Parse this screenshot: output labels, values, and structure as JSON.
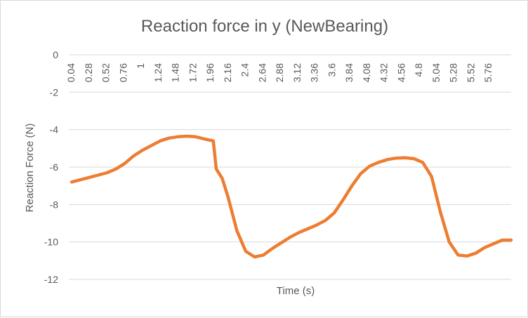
{
  "chart_data": {
    "type": "line",
    "title": "Reaction force in y (NewBearing)",
    "xlabel": "Time (s)",
    "ylabel": "Reaction Force (N)",
    "ylim": [
      -12,
      0
    ],
    "yticks": [
      0,
      -2,
      -4,
      -6,
      -8,
      -10,
      -12
    ],
    "grid": true,
    "legend": "none",
    "series_color": "#ED7D31",
    "x_tick_labels": [
      "0.04",
      "0.28",
      "0.52",
      "0.76",
      "1",
      "1.24",
      "1.48",
      "1.72",
      "1.96",
      "2.16",
      "2.4",
      "2.64",
      "2.88",
      "3.12",
      "3.36",
      "3.6",
      "3.84",
      "4.08",
      "4.32",
      "4.56",
      "4.8",
      "5.04",
      "5.28",
      "5.52",
      "5.76"
    ],
    "series": [
      {
        "x": [
          0.04,
          0.28,
          0.52,
          0.64,
          0.76,
          0.88,
          1.0,
          1.12,
          1.24,
          1.36,
          1.48,
          1.6,
          1.72,
          1.84,
          1.96,
          2.0,
          2.08,
          2.16,
          2.28,
          2.4,
          2.52,
          2.64,
          2.76,
          2.88,
          3.0,
          3.12,
          3.24,
          3.36,
          3.48,
          3.6,
          3.72,
          3.84,
          3.96,
          4.08,
          4.2,
          4.32,
          4.44,
          4.56,
          4.68,
          4.8,
          4.92,
          5.04,
          5.16,
          5.28,
          5.4,
          5.52,
          5.64,
          5.76,
          5.88,
          6.0
        ],
        "y": [
          -6.8,
          -6.55,
          -6.3,
          -6.1,
          -5.8,
          -5.4,
          -5.1,
          -4.85,
          -4.6,
          -4.45,
          -4.38,
          -4.35,
          -4.38,
          -4.5,
          -4.6,
          -6.1,
          -6.6,
          -7.6,
          -9.4,
          -10.5,
          -10.8,
          -10.7,
          -10.35,
          -10.05,
          -9.75,
          -9.5,
          -9.3,
          -9.1,
          -8.85,
          -8.45,
          -7.75,
          -7.0,
          -6.35,
          -5.95,
          -5.75,
          -5.6,
          -5.52,
          -5.5,
          -5.55,
          -5.75,
          -6.5,
          -8.4,
          -10.0,
          -10.7,
          -10.75,
          -10.6,
          -10.3,
          -10.1,
          -9.9,
          -9.9
        ]
      }
    ]
  }
}
